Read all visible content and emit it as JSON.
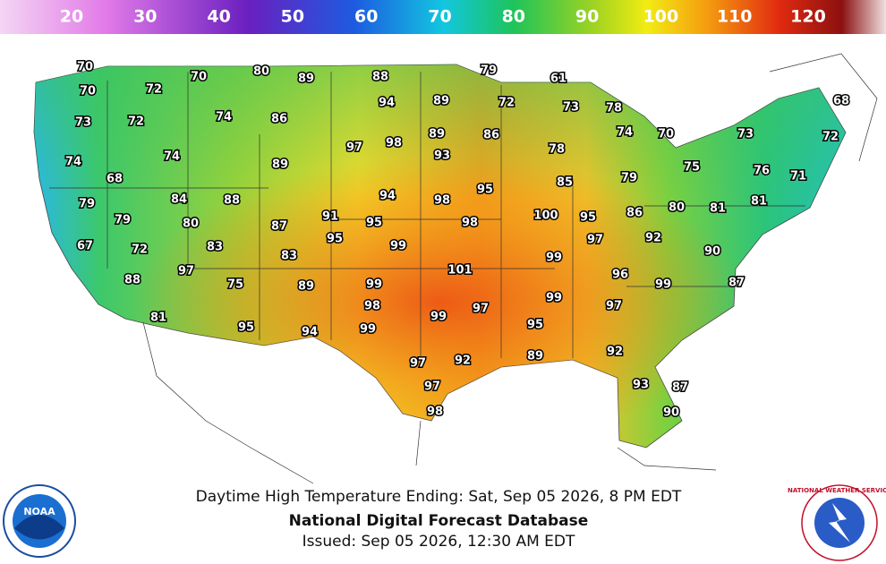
{
  "legend": {
    "labels": [
      20,
      30,
      40,
      50,
      60,
      70,
      80,
      90,
      100,
      110,
      120
    ]
  },
  "map": {
    "labels": [
      70,
      70,
      72,
      70,
      80,
      89,
      88,
      79,
      61,
      73,
      72,
      74,
      86,
      94,
      89,
      72,
      73,
      78,
      68,
      74,
      74,
      89,
      97,
      98,
      89,
      93,
      86,
      78,
      74,
      70,
      73,
      72,
      68,
      75,
      76,
      71,
      79,
      85,
      79,
      84,
      88,
      94,
      98,
      95,
      79,
      80,
      87,
      91,
      95,
      98,
      100,
      95,
      86,
      80,
      81,
      81,
      67,
      72,
      83,
      95,
      99,
      83,
      97,
      92,
      90,
      99,
      97,
      88,
      75,
      89,
      99,
      101,
      96,
      99,
      87,
      98,
      99,
      97,
      99,
      97,
      95,
      81,
      95,
      94,
      99,
      97,
      92,
      89,
      92,
      97,
      93,
      87,
      98,
      90
    ]
  },
  "footer": {
    "subtitle": "Daytime High Temperature Ending: Sat, Sep 05 2026, 8 PM EDT",
    "title": "National Digital Forecast Database",
    "issued": "Issued: Sep 05 2026, 12:30 AM EDT"
  },
  "logos": {
    "left": "NOAA",
    "right": "NATIONAL WEATHER SERVICE"
  }
}
